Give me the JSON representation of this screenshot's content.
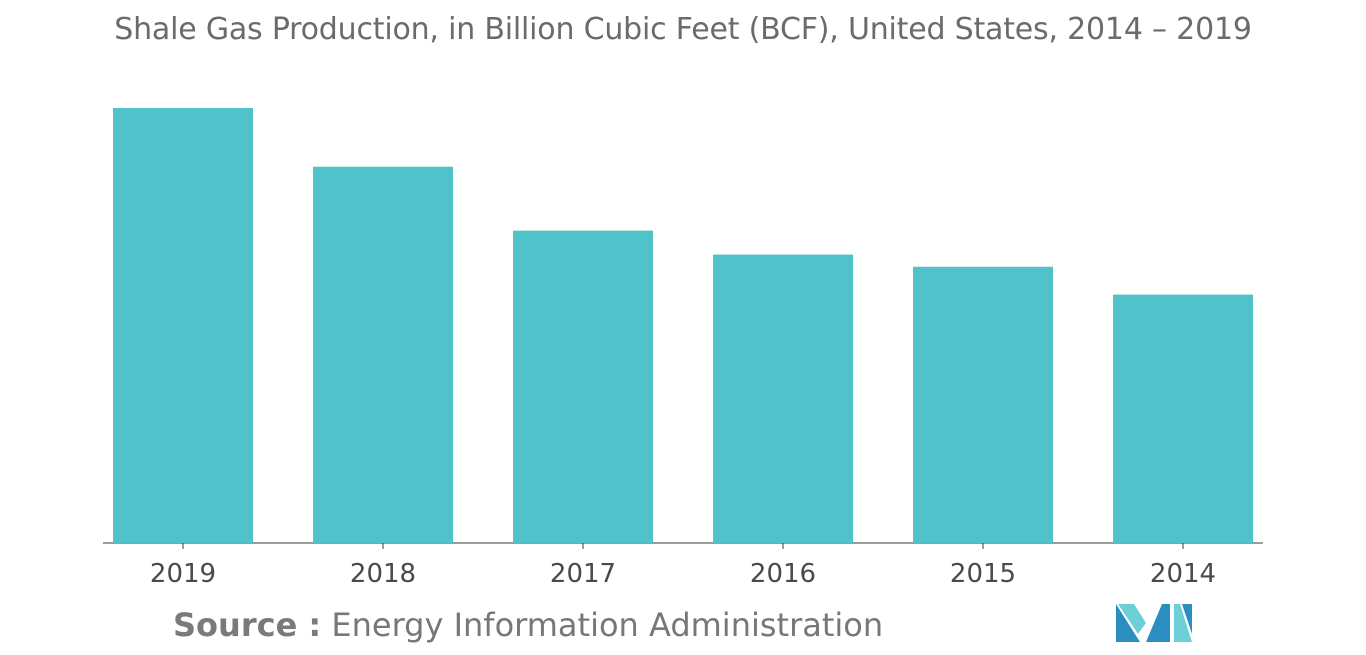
{
  "title": "Shale Gas Production, in Billion Cubic Feet (BCF), United States, 2014 – 2019",
  "source": {
    "label": "Source :",
    "text": "Energy Information Administration"
  },
  "colors": {
    "bar": "#50c2ca",
    "title": "#6b6b6b",
    "axis": "#3a3a3a",
    "logo_dark": "#2a8fc0",
    "logo_light": "#6cd0d6"
  },
  "logo_icon": "mordor-intelligence-logo",
  "chart_data": {
    "type": "bar",
    "title": "Shale Gas Production, in Billion Cubic Feet (BCF), United States, 2014 – 2019",
    "categories": [
      "2019",
      "2018",
      "2017",
      "2016",
      "2015",
      "2014"
    ],
    "values": [
      100,
      86.5,
      71.8,
      66.3,
      63.5,
      57.1
    ],
    "xlabel": "",
    "ylabel": "",
    "ylim": [
      0,
      100
    ],
    "grid": false,
    "legend": "none"
  }
}
